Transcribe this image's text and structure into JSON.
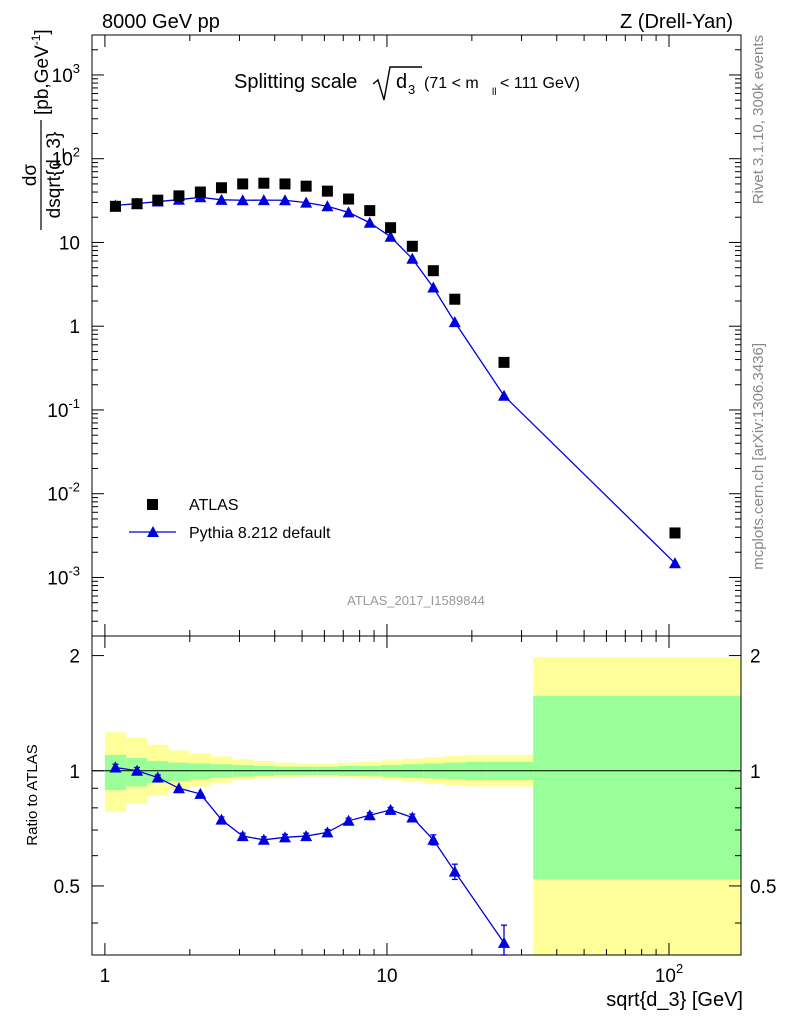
{
  "header": {
    "energy": "8000 GeV pp",
    "process": "Z (Drell-Yan)",
    "title_main": "Splitting scale",
    "title_sqrt_var": "d",
    "title_sqrt_sub": "3",
    "title_cut_a": "(71 < m",
    "title_cut_sub": "ll",
    "title_cut_b": " < 111 GeV)",
    "analysis_id": "ATLAS_2017_I1589844"
  },
  "side": {
    "rivet": "Rivet 3.1.10,  300k events",
    "mcplots": "mcplots.cern.ch [arXiv:1306.3436]"
  },
  "axes": {
    "y_num": "dσ",
    "y_den": "dsqrt{d_3}",
    "y_unit_a": "[pb,GeV",
    "y_unit_exp": "-1",
    "y_unit_b": "]",
    "ratio_label": "Ratio to ATLAS",
    "x_label": "sqrt{d_3} [GeV]"
  },
  "legend": {
    "data": "ATLAS",
    "mc": "Pythia 8.212 default"
  },
  "colors": {
    "mc": "#0000dd",
    "band_inner": "#99ff99",
    "band_outer": "#ffff99",
    "data": "#000000"
  },
  "chart_data": [
    {
      "type": "scatter",
      "title": "Splitting scale sqrt{d_3} (71 < m_ll < 111 GeV)",
      "xlabel": "sqrt{d_3} [GeV]",
      "ylabel": "dσ/dsqrt{d_3} [pb,GeV^-1]",
      "x_scale": "log",
      "y_scale": "log",
      "xlim": [
        0.9,
        180
      ],
      "ylim": [
        0.0002,
        3000
      ],
      "x_ticks": [
        "1",
        "10",
        "10^2"
      ],
      "y_ticks": [
        "10^-3",
        "10^-2",
        "10^-1",
        "1",
        "10",
        "10^2",
        "10^3"
      ],
      "legend_position": "bottom-left",
      "series": [
        {
          "name": "ATLAS",
          "marker": "square",
          "x": [
            1.09,
            1.3,
            1.54,
            1.83,
            2.18,
            2.59,
            3.08,
            3.66,
            4.35,
            5.17,
            6.15,
            7.31,
            8.69,
            10.3,
            12.3,
            14.6,
            17.4,
            26.0,
            105
          ],
          "y": [
            27,
            29,
            32,
            36,
            40,
            45,
            50,
            51,
            50,
            47,
            41,
            33,
            24,
            15,
            9,
            4.6,
            2.1,
            0.37,
            0.0034
          ]
        },
        {
          "name": "Pythia 8.212 default",
          "marker": "triangle",
          "x": [
            1.09,
            1.3,
            1.54,
            1.83,
            2.18,
            2.59,
            3.08,
            3.66,
            4.35,
            5.17,
            6.15,
            7.31,
            8.69,
            10.3,
            12.3,
            14.6,
            17.4,
            26.0,
            105
          ],
          "y": [
            27.7,
            29.1,
            30.8,
            32.4,
            34.6,
            32.3,
            31.9,
            32.0,
            31.9,
            29.9,
            27.1,
            22.9,
            17.2,
            11.7,
            6.4,
            2.9,
            1.12,
            0.148,
            0.00148
          ],
          "yerr": [
            0.4,
            0.4,
            0.4,
            0.4,
            0.4,
            0.4,
            0.4,
            0.4,
            0.4,
            0.4,
            0.3,
            0.3,
            0.2,
            0.15,
            0.08,
            0.05,
            0.03,
            0.006,
            0.00018
          ]
        }
      ]
    },
    {
      "type": "line",
      "ylabel": "Ratio to ATLAS",
      "xlabel": "sqrt{d_3} [GeV]",
      "x_scale": "log",
      "xlim": [
        0.9,
        180
      ],
      "ylim": [
        0.33,
        2.25
      ],
      "y_ticks": [
        "0.5",
        "1",
        "2"
      ],
      "reference_line": 1,
      "bands": {
        "edges": [
          1,
          1.19,
          1.41,
          1.68,
          2.0,
          2.38,
          2.83,
          3.36,
          4.0,
          4.76,
          5.66,
          6.73,
          8.0,
          9.51,
          11.3,
          13.45,
          16.0,
          19.0,
          22.6,
          33.0,
          180
        ],
        "inner_lo": [
          0.89,
          0.91,
          0.93,
          0.94,
          0.95,
          0.96,
          0.965,
          0.97,
          0.975,
          0.975,
          0.975,
          0.97,
          0.97,
          0.965,
          0.96,
          0.955,
          0.95,
          0.945,
          0.945,
          0.52
        ],
        "inner_hi": [
          1.1,
          1.08,
          1.06,
          1.05,
          1.045,
          1.04,
          1.035,
          1.03,
          1.025,
          1.025,
          1.025,
          1.03,
          1.03,
          1.035,
          1.04,
          1.045,
          1.05,
          1.055,
          1.055,
          1.57
        ],
        "outer_lo": [
          0.78,
          0.82,
          0.86,
          0.89,
          0.91,
          0.93,
          0.945,
          0.955,
          0.96,
          0.965,
          0.965,
          0.96,
          0.955,
          0.945,
          0.935,
          0.925,
          0.915,
          0.91,
          0.91,
          0.33
        ],
        "outer_hi": [
          1.26,
          1.22,
          1.17,
          1.13,
          1.11,
          1.09,
          1.07,
          1.06,
          1.05,
          1.045,
          1.045,
          1.05,
          1.055,
          1.065,
          1.075,
          1.085,
          1.095,
          1.1,
          1.1,
          1.98
        ]
      },
      "series": [
        {
          "name": "Pythia 8.212 default",
          "x": [
            1.09,
            1.3,
            1.54,
            1.83,
            2.18,
            2.59,
            3.08,
            3.66,
            4.35,
            5.17,
            6.15,
            7.31,
            8.69,
            10.3,
            12.3,
            14.6,
            17.4,
            26.0
          ],
          "y": [
            1.02,
            1.0,
            0.96,
            0.9,
            0.87,
            0.745,
            0.675,
            0.66,
            0.67,
            0.675,
            0.69,
            0.74,
            0.765,
            0.79,
            0.755,
            0.66,
            0.545,
            0.355
          ],
          "yerr": [
            0.02,
            0.02,
            0.015,
            0.012,
            0.012,
            0.012,
            0.012,
            0.012,
            0.012,
            0.012,
            0.012,
            0.012,
            0.012,
            0.012,
            0.015,
            0.02,
            0.025,
            0.04
          ]
        }
      ]
    }
  ]
}
